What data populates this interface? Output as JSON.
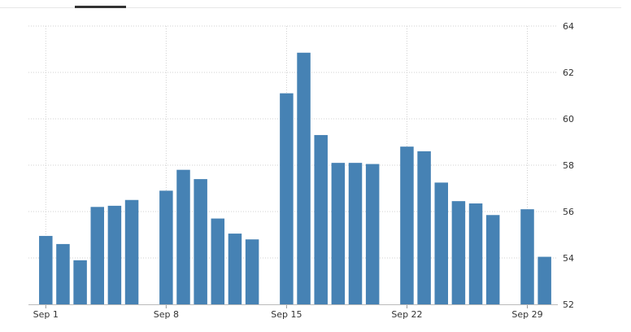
{
  "chart_data": {
    "type": "bar",
    "title": "",
    "xlabel": "",
    "ylabel": "",
    "ylim": [
      52,
      64
    ],
    "yticks": [
      52,
      54,
      56,
      58,
      60,
      62,
      64
    ],
    "y_axis_position": "right",
    "grid": true,
    "bar_color": "#4682b4",
    "x_ticks": [
      {
        "label": "Sep 1",
        "day": 1
      },
      {
        "label": "Sep 8",
        "day": 8
      },
      {
        "label": "Sep 15",
        "day": 15
      },
      {
        "label": "Sep 22",
        "day": 22
      },
      {
        "label": "Sep 29",
        "day": 29
      }
    ],
    "x_range_days": [
      0,
      31
    ],
    "data": [
      {
        "day": 1,
        "value": 54.95
      },
      {
        "day": 2,
        "value": 54.6
      },
      {
        "day": 3,
        "value": 53.9
      },
      {
        "day": 4,
        "value": 56.2
      },
      {
        "day": 5,
        "value": 56.25
      },
      {
        "day": 6,
        "value": 56.5
      },
      {
        "day": 8,
        "value": 56.9
      },
      {
        "day": 9,
        "value": 57.8
      },
      {
        "day": 10,
        "value": 57.4
      },
      {
        "day": 11,
        "value": 55.7
      },
      {
        "day": 12,
        "value": 55.05
      },
      {
        "day": 13,
        "value": 54.8
      },
      {
        "day": 15,
        "value": 61.1
      },
      {
        "day": 16,
        "value": 62.85
      },
      {
        "day": 17,
        "value": 59.3
      },
      {
        "day": 18,
        "value": 58.1
      },
      {
        "day": 19,
        "value": 58.1
      },
      {
        "day": 20,
        "value": 58.05
      },
      {
        "day": 22,
        "value": 58.8
      },
      {
        "day": 23,
        "value": 58.6
      },
      {
        "day": 24,
        "value": 57.25
      },
      {
        "day": 25,
        "value": 56.45
      },
      {
        "day": 26,
        "value": 56.35
      },
      {
        "day": 27,
        "value": 55.85
      },
      {
        "day": 29,
        "value": 56.1
      },
      {
        "day": 30,
        "value": 54.05
      }
    ]
  }
}
